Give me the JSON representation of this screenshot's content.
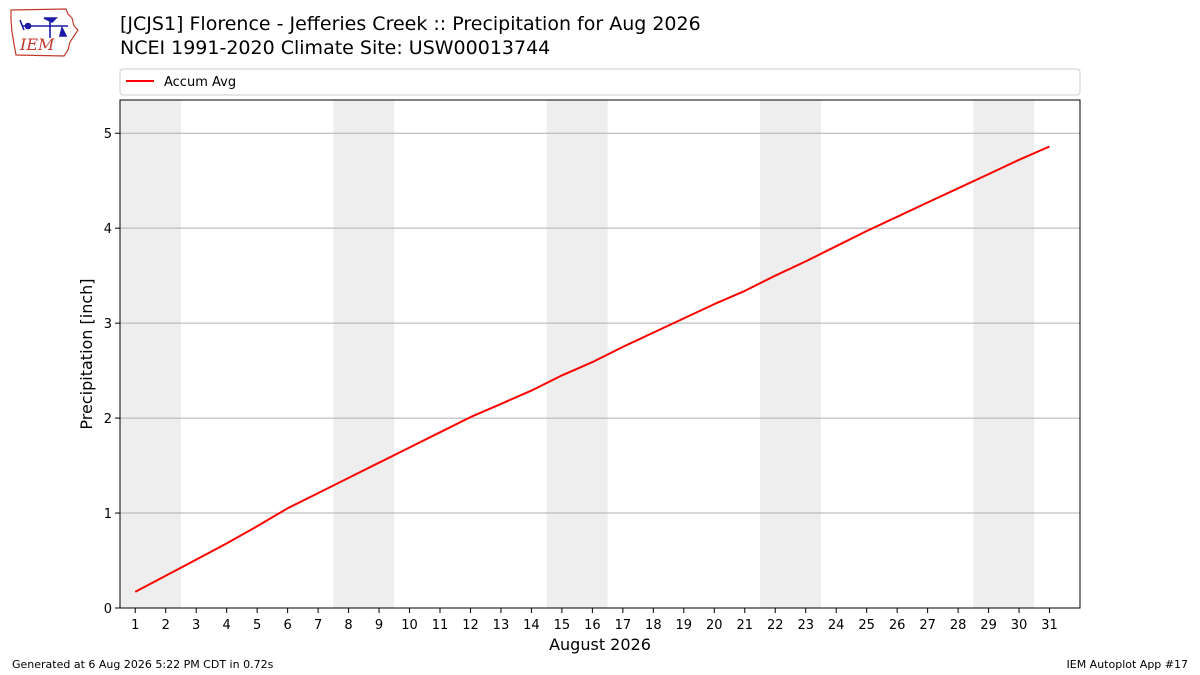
{
  "header": {
    "title_line1": "[JCJS1] Florence - Jefferies Creek :: Precipitation for Aug 2026",
    "title_line2": "NCEI 1991-2020 Climate Site: USW00013744",
    "logo_text": "IEM"
  },
  "footer": {
    "left": "Generated at 6 Aug 2026 5:22 PM CDT in 0.72s",
    "right": "IEM Autoplot App #17"
  },
  "chart_data": {
    "type": "line",
    "xlabel": "August 2026",
    "ylabel": "Precipitation [inch]",
    "xlim": [
      0.5,
      32.0
    ],
    "ylim": [
      0,
      5.35
    ],
    "grid": "horizontal",
    "legend_placement": "top, above plot",
    "weekend_shading": [
      [
        0.5,
        2.5
      ],
      [
        7.5,
        9.5
      ],
      [
        14.5,
        16.5
      ],
      [
        21.5,
        23.5
      ],
      [
        28.5,
        30.5
      ]
    ],
    "x_ticks": [
      1,
      2,
      3,
      4,
      5,
      6,
      7,
      8,
      9,
      10,
      11,
      12,
      13,
      14,
      15,
      16,
      17,
      18,
      19,
      20,
      21,
      22,
      23,
      24,
      25,
      26,
      27,
      28,
      29,
      30,
      31
    ],
    "y_ticks": [
      0,
      1,
      2,
      3,
      4,
      5
    ],
    "series": [
      {
        "name": "Accum Avg",
        "color": "#ff0000",
        "x": [
          1,
          2,
          3,
          4,
          5,
          6,
          7,
          8,
          9,
          10,
          11,
          12,
          13,
          14,
          15,
          16,
          17,
          18,
          19,
          20,
          21,
          22,
          23,
          24,
          25,
          26,
          27,
          28,
          29,
          30,
          31
        ],
        "values": [
          0.17,
          0.34,
          0.51,
          0.68,
          0.86,
          1.05,
          1.21,
          1.37,
          1.53,
          1.69,
          1.85,
          2.01,
          2.15,
          2.29,
          2.45,
          2.59,
          2.75,
          2.9,
          3.05,
          3.2,
          3.34,
          3.5,
          3.65,
          3.81,
          3.97,
          4.12,
          4.27,
          4.42,
          4.57,
          4.72,
          4.86
        ]
      }
    ]
  }
}
